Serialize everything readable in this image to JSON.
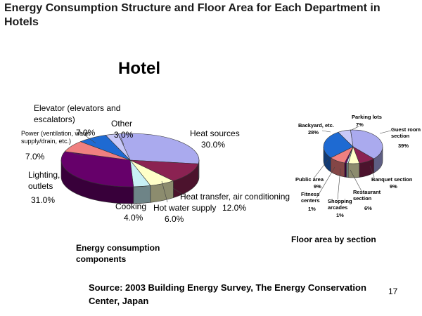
{
  "slide": {
    "title": "Energy Consumption Structure and Floor Area for Each Department in Hotels",
    "hotel_heading": "Hotel",
    "source": "Source:  2003 Building Energy Survey, The Energy Conservation Center, Japan",
    "page_number": "17"
  },
  "chart_data": [
    {
      "type": "pie",
      "title": "Hotel",
      "caption": "Energy consumption components",
      "slices": [
        {
          "label": "Heat sources",
          "value": 30.0,
          "value_label": "30.0%",
          "color": "#aaaaee"
        },
        {
          "label": "Heat transfer, air conditioning",
          "value": 12.0,
          "value_label": "12.0%",
          "color": "#8b2252"
        },
        {
          "label": "Hot water supply",
          "value": 6.0,
          "value_label": "6.0%",
          "color": "#ffffc8"
        },
        {
          "label": "Cooking",
          "value": 4.0,
          "value_label": "4.0%",
          "color": "#c8f0f5"
        },
        {
          "label": "Lighting, outlets",
          "value": 31.0,
          "value_label": "31.0%",
          "color": "#66006a"
        },
        {
          "label": "Power (ventilation, water supply/drain, etc.)",
          "value": 7.0,
          "value_label": "7.0%",
          "color": "#f08080"
        },
        {
          "label": "Elevator (elevators and escalators)",
          "value": 7.0,
          "value_label": "7.0%",
          "color": "#1e6ad2"
        },
        {
          "label": "Other",
          "value": 3.0,
          "value_label": "3.0%",
          "color": "#c8c8f8"
        }
      ]
    },
    {
      "type": "pie",
      "caption": "Floor area by section",
      "slices": [
        {
          "label": "Guest room section",
          "value": 39,
          "value_label": "39%",
          "color": "#aaaaee"
        },
        {
          "label": "Banquet section",
          "value": 9,
          "value_label": "9%",
          "color": "#8b2252"
        },
        {
          "label": "Restaurant section",
          "value": 6,
          "value_label": "6%",
          "color": "#ffffc8"
        },
        {
          "label": "Shopping arcades",
          "value": 1,
          "value_label": "1%",
          "color": "#c8f0f5"
        },
        {
          "label": "Fitness centers",
          "value": 1,
          "value_label": "1%",
          "color": "#66006a"
        },
        {
          "label": "Public area",
          "value": 9,
          "value_label": "9%",
          "color": "#f08080"
        },
        {
          "label": "Backyard, etc.",
          "value": 28,
          "value_label": "28%",
          "color": "#1e6ad2"
        },
        {
          "label": "Parking lots",
          "value": 7,
          "value_label": "7%",
          "color": "#c8c8f8"
        }
      ]
    }
  ]
}
